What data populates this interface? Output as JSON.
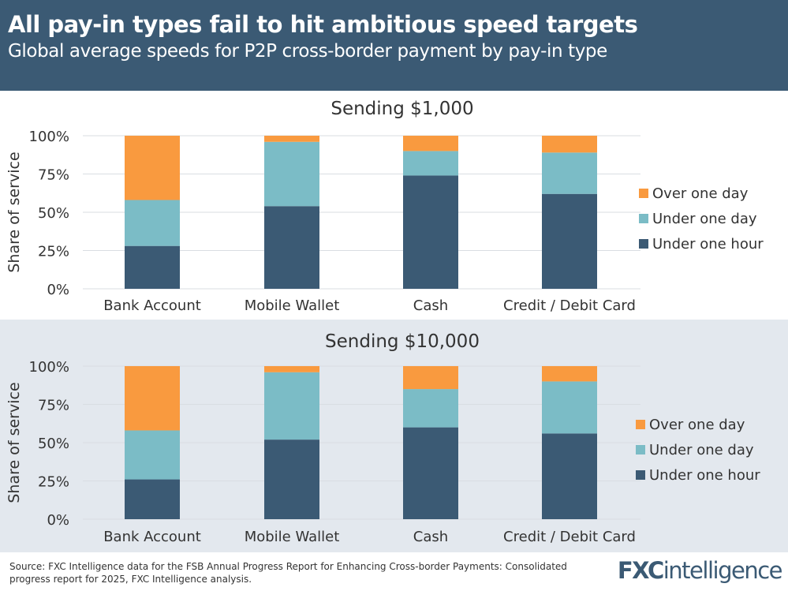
{
  "header": {
    "title": "All pay-in types fail to hit ambitious speed targets",
    "subtitle": "Global average speeds for P2P cross-border payment by pay-in type"
  },
  "chart_data": [
    {
      "type": "bar",
      "stacked": true,
      "title": "Sending $1,000",
      "ylabel": "Share of service",
      "ylim": [
        0,
        100
      ],
      "yticks": [
        "0%",
        "25%",
        "50%",
        "75%",
        "100%"
      ],
      "categories": [
        "Bank Account",
        "Mobile Wallet",
        "Cash",
        "Credit / Debit Card"
      ],
      "legend_position": "right",
      "series": [
        {
          "name": "Under one hour",
          "color": "#3b5a74",
          "values": [
            28,
            54,
            74,
            62
          ]
        },
        {
          "name": "Under one day",
          "color": "#7bbcc6",
          "values": [
            30,
            42,
            16,
            27
          ]
        },
        {
          "name": "Over one day",
          "color": "#f99a3f",
          "values": [
            42,
            4,
            10,
            11
          ]
        }
      ]
    },
    {
      "type": "bar",
      "stacked": true,
      "title": "Sending $10,000",
      "ylabel": "Share of service",
      "ylim": [
        0,
        100
      ],
      "yticks": [
        "0%",
        "25%",
        "50%",
        "75%",
        "100%"
      ],
      "categories": [
        "Bank Account",
        "Mobile Wallet",
        "Cash",
        "Credit / Debit Card"
      ],
      "legend_position": "right",
      "series": [
        {
          "name": "Under one hour",
          "color": "#3b5a74",
          "values": [
            26,
            52,
            60,
            56
          ]
        },
        {
          "name": "Under one day",
          "color": "#7bbcc6",
          "values": [
            32,
            44,
            25,
            34
          ]
        },
        {
          "name": "Over one day",
          "color": "#f99a3f",
          "values": [
            42,
            4,
            15,
            10
          ]
        }
      ]
    }
  ],
  "footer": {
    "source": "Source: FXC Intelligence data for the FSB Annual Progress Report for Enhancing Cross-border Payments: Consolidated progress report for 2025, FXC Intelligence analysis.",
    "logo": "FXCintelligence"
  }
}
